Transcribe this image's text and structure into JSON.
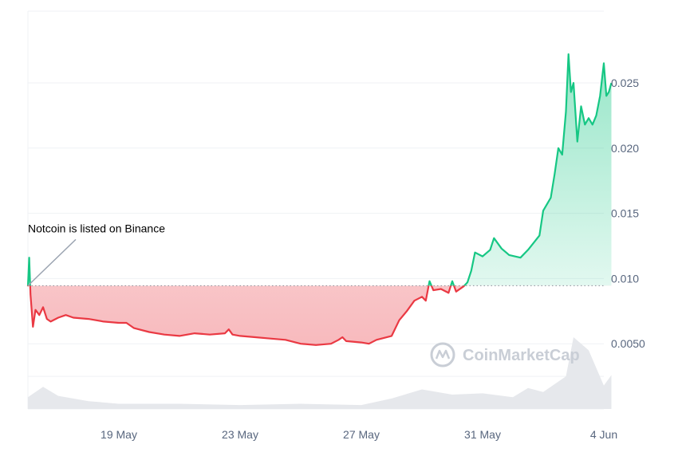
{
  "chart_data": {
    "type": "area",
    "baseline": 0.00945,
    "ylim": [
      0.0,
      0.0305
    ],
    "xlim": [
      "2024-05-16",
      "2024-06-04"
    ],
    "x_ticks": [
      {
        "date": "2024-05-19",
        "label": "19 May"
      },
      {
        "date": "2024-05-23",
        "label": "23 May"
      },
      {
        "date": "2024-05-27",
        "label": "27 May"
      },
      {
        "date": "2024-05-31",
        "label": "31 May"
      },
      {
        "date": "2024-06-04",
        "label": "4 Jun"
      }
    ],
    "y_ticks": [
      {
        "value": 0.005,
        "label": "0.0050"
      },
      {
        "value": 0.01,
        "label": "0.010"
      },
      {
        "value": 0.015,
        "label": "0.015"
      },
      {
        "value": 0.02,
        "label": "0.020"
      },
      {
        "value": 0.025,
        "label": "0.025"
      }
    ],
    "grid": true,
    "colors": {
      "up": "#16c784",
      "down": "#ea3943",
      "grid": "#eff2f5",
      "baseline": "#8a8f99",
      "volume": "#e6e8ec"
    },
    "series": [
      {
        "points": [
          [
            "2024-05-16T00:00",
            0.0094
          ],
          [
            "2024-05-16T01:00",
            0.0116
          ],
          [
            "2024-05-16T02:00",
            0.0088
          ],
          [
            "2024-05-16T04:00",
            0.0063
          ],
          [
            "2024-05-16T06:00",
            0.0076
          ],
          [
            "2024-05-16T09:00",
            0.0072
          ],
          [
            "2024-05-16T12:00",
            0.0078
          ],
          [
            "2024-05-16T15:00",
            0.0069
          ],
          [
            "2024-05-16T18:00",
            0.0067
          ],
          [
            "2024-05-17T00:00",
            0.007
          ],
          [
            "2024-05-17T06:00",
            0.0072
          ],
          [
            "2024-05-17T12:00",
            0.007
          ],
          [
            "2024-05-18T00:00",
            0.0069
          ],
          [
            "2024-05-18T12:00",
            0.0067
          ],
          [
            "2024-05-19T00:00",
            0.0066
          ],
          [
            "2024-05-19T06:00",
            0.0066
          ],
          [
            "2024-05-19T12:00",
            0.0062
          ],
          [
            "2024-05-20T00:00",
            0.0059
          ],
          [
            "2024-05-20T12:00",
            0.0057
          ],
          [
            "2024-05-21T00:00",
            0.0056
          ],
          [
            "2024-05-21T12:00",
            0.0058
          ],
          [
            "2024-05-22T00:00",
            0.0057
          ],
          [
            "2024-05-22T12:00",
            0.0058
          ],
          [
            "2024-05-22T15:00",
            0.0061
          ],
          [
            "2024-05-22T18:00",
            0.0057
          ],
          [
            "2024-05-23T00:00",
            0.0056
          ],
          [
            "2024-05-23T12:00",
            0.0055
          ],
          [
            "2024-05-24T00:00",
            0.0054
          ],
          [
            "2024-05-24T12:00",
            0.0053
          ],
          [
            "2024-05-25T00:00",
            0.005
          ],
          [
            "2024-05-25T12:00",
            0.0049
          ],
          [
            "2024-05-26T00:00",
            0.005
          ],
          [
            "2024-05-26T06:00",
            0.0053
          ],
          [
            "2024-05-26T09:00",
            0.0055
          ],
          [
            "2024-05-26T12:00",
            0.0052
          ],
          [
            "2024-05-27T00:00",
            0.0051
          ],
          [
            "2024-05-27T06:00",
            0.005
          ],
          [
            "2024-05-27T12:00",
            0.0053
          ],
          [
            "2024-05-28T00:00",
            0.0056
          ],
          [
            "2024-05-28T06:00",
            0.0068
          ],
          [
            "2024-05-28T12:00",
            0.0075
          ],
          [
            "2024-05-28T18:00",
            0.0083
          ],
          [
            "2024-05-29T00:00",
            0.0086
          ],
          [
            "2024-05-29T03:00",
            0.0083
          ],
          [
            "2024-05-29T06:00",
            0.0098
          ],
          [
            "2024-05-29T09:00",
            0.0091
          ],
          [
            "2024-05-29T15:00",
            0.0092
          ],
          [
            "2024-05-29T21:00",
            0.0089
          ],
          [
            "2024-05-30T00:00",
            0.0098
          ],
          [
            "2024-05-30T03:00",
            0.009
          ],
          [
            "2024-05-30T09:00",
            0.0094
          ],
          [
            "2024-05-30T12:00",
            0.0097
          ],
          [
            "2024-05-30T15:00",
            0.0106
          ],
          [
            "2024-05-30T18:00",
            0.012
          ],
          [
            "2024-05-31T00:00",
            0.0117
          ],
          [
            "2024-05-31T06:00",
            0.0122
          ],
          [
            "2024-05-31T09:00",
            0.0131
          ],
          [
            "2024-05-31T15:00",
            0.0123
          ],
          [
            "2024-05-31T21:00",
            0.0118
          ],
          [
            "2024-06-01T06:00",
            0.0116
          ],
          [
            "2024-06-01T12:00",
            0.0122
          ],
          [
            "2024-06-01T21:00",
            0.0133
          ],
          [
            "2024-06-02T00:00",
            0.0152
          ],
          [
            "2024-06-02T06:00",
            0.0162
          ],
          [
            "2024-06-02T09:00",
            0.018
          ],
          [
            "2024-06-02T12:00",
            0.02
          ],
          [
            "2024-06-02T15:00",
            0.0195
          ],
          [
            "2024-06-02T18:00",
            0.0228
          ],
          [
            "2024-06-02T20:00",
            0.0272
          ],
          [
            "2024-06-02T22:00",
            0.0243
          ],
          [
            "2024-06-03T00:00",
            0.025
          ],
          [
            "2024-06-03T03:00",
            0.0205
          ],
          [
            "2024-06-03T06:00",
            0.0232
          ],
          [
            "2024-06-03T09:00",
            0.0218
          ],
          [
            "2024-06-03T12:00",
            0.0223
          ],
          [
            "2024-06-03T15:00",
            0.0218
          ],
          [
            "2024-06-03T18:00",
            0.0225
          ],
          [
            "2024-06-03T21:00",
            0.024
          ],
          [
            "2024-06-04T00:00",
            0.0265
          ],
          [
            "2024-06-04T02:00",
            0.024
          ],
          [
            "2024-06-04T04:00",
            0.0243
          ],
          [
            "2024-06-04T06:00",
            0.025
          ]
        ]
      }
    ],
    "volume": [
      [
        "2024-05-16T00:00",
        0.0009
      ],
      [
        "2024-05-16T12:00",
        0.0017
      ],
      [
        "2024-05-17T00:00",
        0.001
      ],
      [
        "2024-05-18T00:00",
        0.0006
      ],
      [
        "2024-05-19T00:00",
        0.0004
      ],
      [
        "2024-05-21T00:00",
        0.0004
      ],
      [
        "2024-05-23T00:00",
        0.0003
      ],
      [
        "2024-05-25T00:00",
        0.0004
      ],
      [
        "2024-05-27T00:00",
        0.0003
      ],
      [
        "2024-05-28T00:00",
        0.0008
      ],
      [
        "2024-05-29T00:00",
        0.0015
      ],
      [
        "2024-05-30T00:00",
        0.0011
      ],
      [
        "2024-05-31T00:00",
        0.0012
      ],
      [
        "2024-06-01T00:00",
        0.0009
      ],
      [
        "2024-06-01T12:00",
        0.0016
      ],
      [
        "2024-06-02T00:00",
        0.0013
      ],
      [
        "2024-06-02T18:00",
        0.0025
      ],
      [
        "2024-06-03T00:00",
        0.0055
      ],
      [
        "2024-06-03T12:00",
        0.0045
      ],
      [
        "2024-06-04T00:00",
        0.0018
      ],
      [
        "2024-06-04T06:00",
        0.0026
      ]
    ],
    "annotation": {
      "text": "Notcoin is listed on Binance",
      "date": "2024-05-16T00:00"
    }
  },
  "watermark": {
    "text": "CoinMarketCap",
    "icon": "coinmarketcap-logo-icon"
  }
}
